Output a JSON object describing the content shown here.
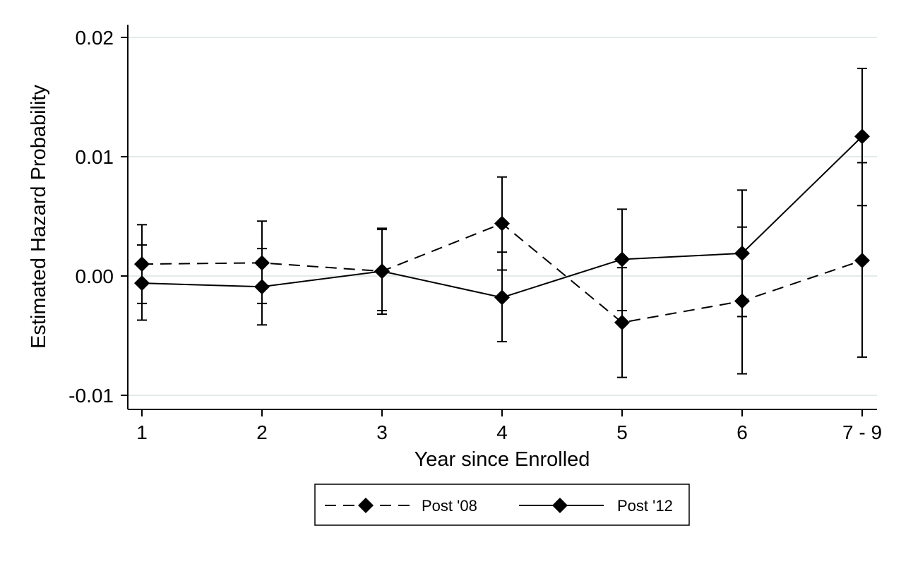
{
  "chart_data": {
    "type": "line",
    "title": "",
    "xlabel": "Year since Enrolled",
    "ylabel": "Estimated Hazard Probability",
    "categories": [
      "1",
      "2",
      "3",
      "4",
      "5",
      "6",
      "7 - 9"
    ],
    "ylim": [
      -0.011,
      0.0215
    ],
    "yticks": [
      -0.01,
      0.0,
      0.01,
      0.02
    ],
    "ytick_labels": [
      "-0.01",
      "0.00",
      "0.01",
      "0.02"
    ],
    "grid": "horizontal",
    "legend_position": "bottom",
    "series": [
      {
        "name": "Post '08",
        "line_style": "dashed",
        "marker": "diamond",
        "color": "#000000",
        "values": [
          0.001,
          0.0011,
          0.0004,
          0.0044,
          -0.0039,
          -0.0021,
          0.0013
        ],
        "ci_low": [
          -0.0023,
          -0.0023,
          -0.0029,
          0.0005,
          -0.0085,
          -0.0082,
          -0.0068
        ],
        "ci_high": [
          0.0043,
          0.0046,
          0.0039,
          0.0083,
          0.0007,
          0.0072,
          0.0095
        ]
      },
      {
        "name": "Post '12",
        "line_style": "solid",
        "marker": "diamond",
        "color": "#000000",
        "values": [
          -0.0006,
          -0.0009,
          0.0004,
          -0.0018,
          0.0014,
          0.0019,
          0.0117
        ],
        "ci_low": [
          -0.0037,
          -0.0041,
          -0.0032,
          -0.0055,
          -0.0029,
          -0.0034,
          0.0059
        ],
        "ci_high": [
          0.0026,
          0.0023,
          0.004,
          0.002,
          0.0056,
          0.0041,
          0.0174
        ]
      }
    ]
  }
}
